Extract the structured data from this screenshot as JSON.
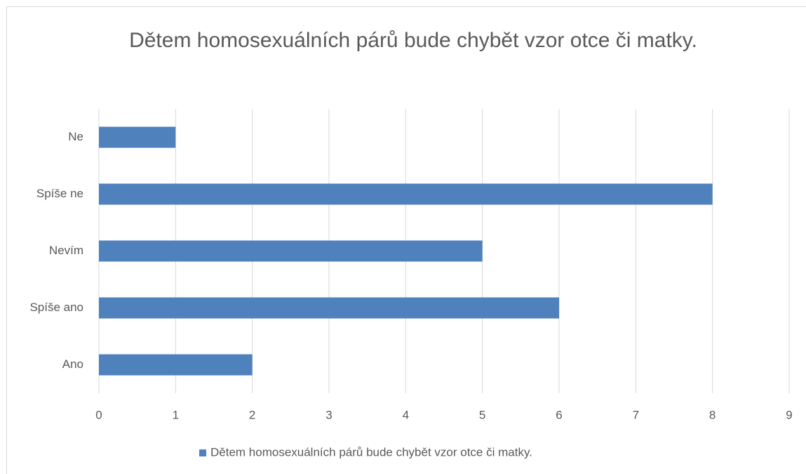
{
  "chart_data": {
    "type": "bar",
    "orientation": "horizontal",
    "title": "Dětem homosexuálních párů bude chybět vzor otce či matky.",
    "categories": [
      "Ne",
      "Spíše ne",
      "Nevím",
      "Spíše ano",
      "Ano"
    ],
    "series": [
      {
        "name": "Dětem homosexuálních párů bude chybět vzor otce či matky.",
        "color": "#4f81bd",
        "values": [
          1,
          8,
          5,
          6,
          2
        ]
      }
    ],
    "xlim": [
      0,
      9
    ],
    "xticks": [
      0,
      1,
      2,
      3,
      4,
      5,
      6,
      7,
      8,
      9
    ],
    "grid": true,
    "legend": "bottom"
  }
}
